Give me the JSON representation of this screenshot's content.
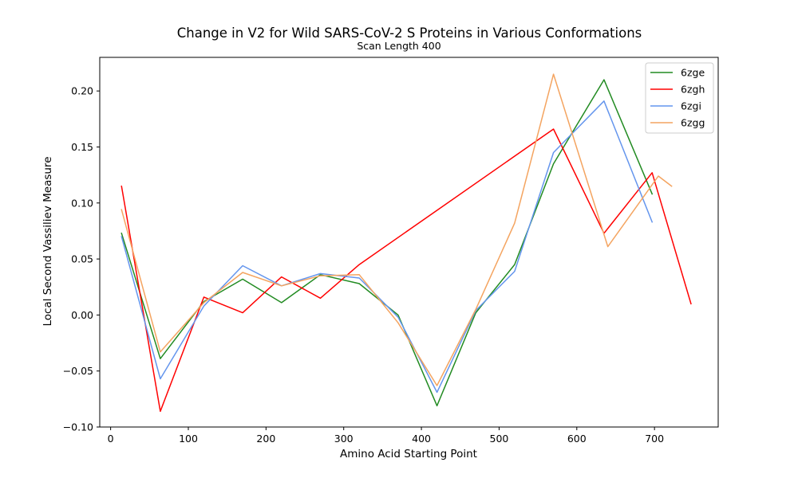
{
  "chart_data": {
    "type": "line",
    "title": "Change in V2 for Wild SARS-CoV-2 S Proteins in Various Conformations",
    "subtitle": "Scan Length 400",
    "xlabel": "Amino Acid Starting Point",
    "ylabel": "Local Second Vassiliev Measure",
    "xlim": [
      -14,
      782
    ],
    "ylim": [
      -0.1,
      0.23
    ],
    "xticks": [
      0,
      100,
      200,
      300,
      400,
      500,
      600,
      700
    ],
    "xtick_labels": [
      "0",
      "100",
      "200",
      "300",
      "400",
      "500",
      "600",
      "700"
    ],
    "yticks": [
      -0.1,
      -0.05,
      0.0,
      0.05,
      0.1,
      0.15,
      0.2
    ],
    "ytick_labels": [
      "−0.10",
      "−0.05",
      "0.00",
      "0.05",
      "0.10",
      "0.15",
      "0.20"
    ],
    "grid": false,
    "legend_position": "top-right",
    "series": [
      {
        "name": "6zge",
        "color": "#228b22",
        "points": [
          [
            14,
            0.073
          ],
          [
            64,
            -0.039
          ],
          [
            120,
            0.012
          ],
          [
            170,
            0.032
          ],
          [
            220,
            0.011
          ],
          [
            270,
            0.036
          ],
          [
            320,
            0.028
          ],
          [
            370,
            0.0
          ],
          [
            420,
            -0.081
          ],
          [
            470,
            0.002
          ],
          [
            520,
            0.045
          ],
          [
            570,
            0.135
          ],
          [
            635,
            0.21
          ],
          [
            697,
            0.108
          ]
        ]
      },
      {
        "name": "6zgh",
        "color": "#ff0000",
        "points": [
          [
            14,
            0.115
          ],
          [
            64,
            -0.086
          ],
          [
            120,
            0.016
          ],
          [
            170,
            0.002
          ],
          [
            220,
            0.034
          ],
          [
            270,
            0.015
          ],
          [
            320,
            0.045
          ],
          [
            570,
            0.166
          ],
          [
            635,
            0.073
          ],
          [
            697,
            0.127
          ],
          [
            747,
            0.01
          ]
        ]
      },
      {
        "name": "6zgi",
        "color": "#6495ed",
        "points": [
          [
            14,
            0.07
          ],
          [
            64,
            -0.057
          ],
          [
            120,
            0.008
          ],
          [
            170,
            0.044
          ],
          [
            220,
            0.026
          ],
          [
            270,
            0.037
          ],
          [
            320,
            0.033
          ],
          [
            370,
            -0.002
          ],
          [
            420,
            -0.069
          ],
          [
            470,
            0.004
          ],
          [
            520,
            0.039
          ],
          [
            570,
            0.145
          ],
          [
            635,
            0.191
          ],
          [
            697,
            0.083
          ]
        ]
      },
      {
        "name": "6zgg",
        "color": "#f4a460",
        "points": [
          [
            14,
            0.094
          ],
          [
            64,
            -0.033
          ],
          [
            120,
            0.011
          ],
          [
            170,
            0.038
          ],
          [
            220,
            0.026
          ],
          [
            270,
            0.035
          ],
          [
            320,
            0.036
          ],
          [
            370,
            -0.007
          ],
          [
            420,
            -0.063
          ],
          [
            470,
            0.005
          ],
          [
            520,
            0.082
          ],
          [
            570,
            0.215
          ],
          [
            640,
            0.061
          ],
          [
            705,
            0.124
          ],
          [
            722,
            0.115
          ]
        ]
      }
    ]
  }
}
